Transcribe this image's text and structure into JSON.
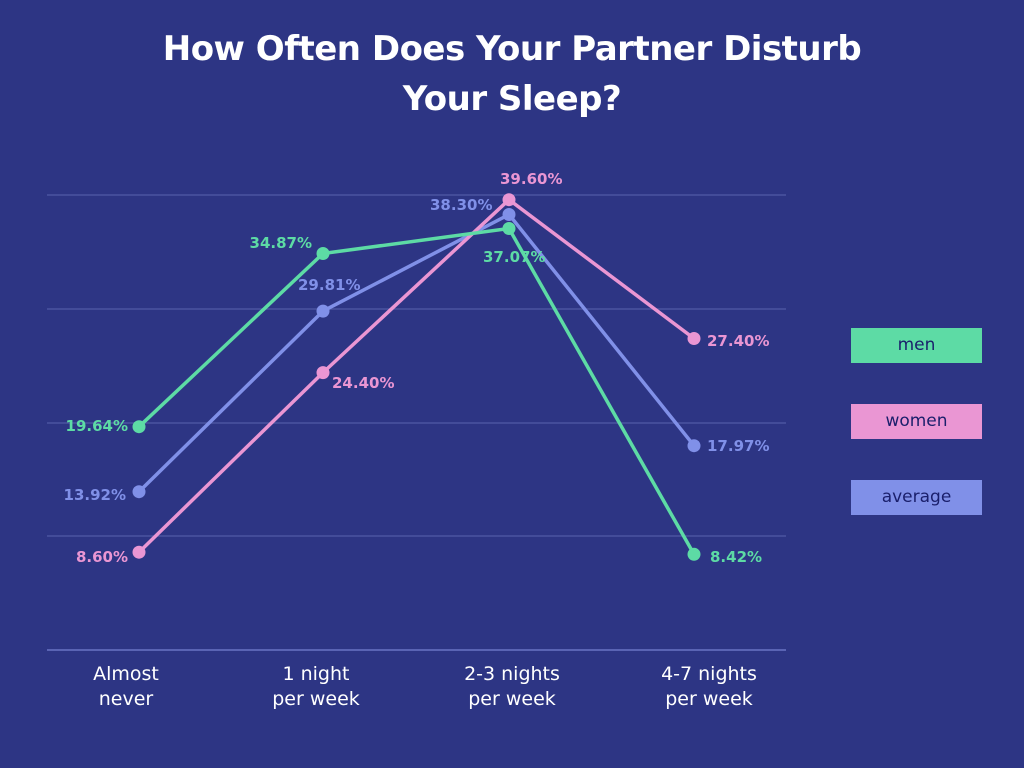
{
  "title": {
    "line1": "How Often Does Your Partner Disturb",
    "line2": "Your Sleep?"
  },
  "colors": {
    "background": "#2d3584",
    "gridline": "#4b54a0",
    "axis": "#5a64b4",
    "men": "#5ddba5",
    "women": "#ea96d3",
    "average": "#8090e8"
  },
  "x_labels": [
    {
      "line1": "Almost",
      "line2": "never"
    },
    {
      "line1": "1 night",
      "line2": "per week"
    },
    {
      "line1": "2-3 nights",
      "line2": "per week"
    },
    {
      "line1": "4-7 nights",
      "line2": "per week"
    }
  ],
  "legend": {
    "men": "men",
    "women": "women",
    "average": "average"
  },
  "data_labels": {
    "men": [
      "19.64%",
      "34.87%",
      "37.07%",
      "8.42%"
    ],
    "women": [
      "8.60%",
      "24.40%",
      "39.60%",
      "27.40%"
    ],
    "average": [
      "13.92%",
      "29.81%",
      "38.30%",
      "17.97%"
    ]
  },
  "chart_data": {
    "type": "line",
    "title": "How Often Does Your Partner Disturb Your Sleep?",
    "categories": [
      "Almost never",
      "1 night per week",
      "2-3 nights per week",
      "4-7 nights per week"
    ],
    "series": [
      {
        "name": "men",
        "color": "#5ddba5",
        "values": [
          19.64,
          34.87,
          37.07,
          8.42
        ]
      },
      {
        "name": "women",
        "color": "#ea96d3",
        "values": [
          8.6,
          24.4,
          39.6,
          27.4
        ]
      },
      {
        "name": "average",
        "color": "#8090e8",
        "values": [
          13.92,
          29.81,
          38.3,
          17.97
        ]
      }
    ],
    "xlabel": "",
    "ylabel": "",
    "ylim": [
      0,
      40
    ],
    "gridlines": [
      10,
      20,
      30,
      40
    ],
    "y_tick_labels_visible": false,
    "data_labels": true,
    "legend_position": "right",
    "grid": true
  }
}
